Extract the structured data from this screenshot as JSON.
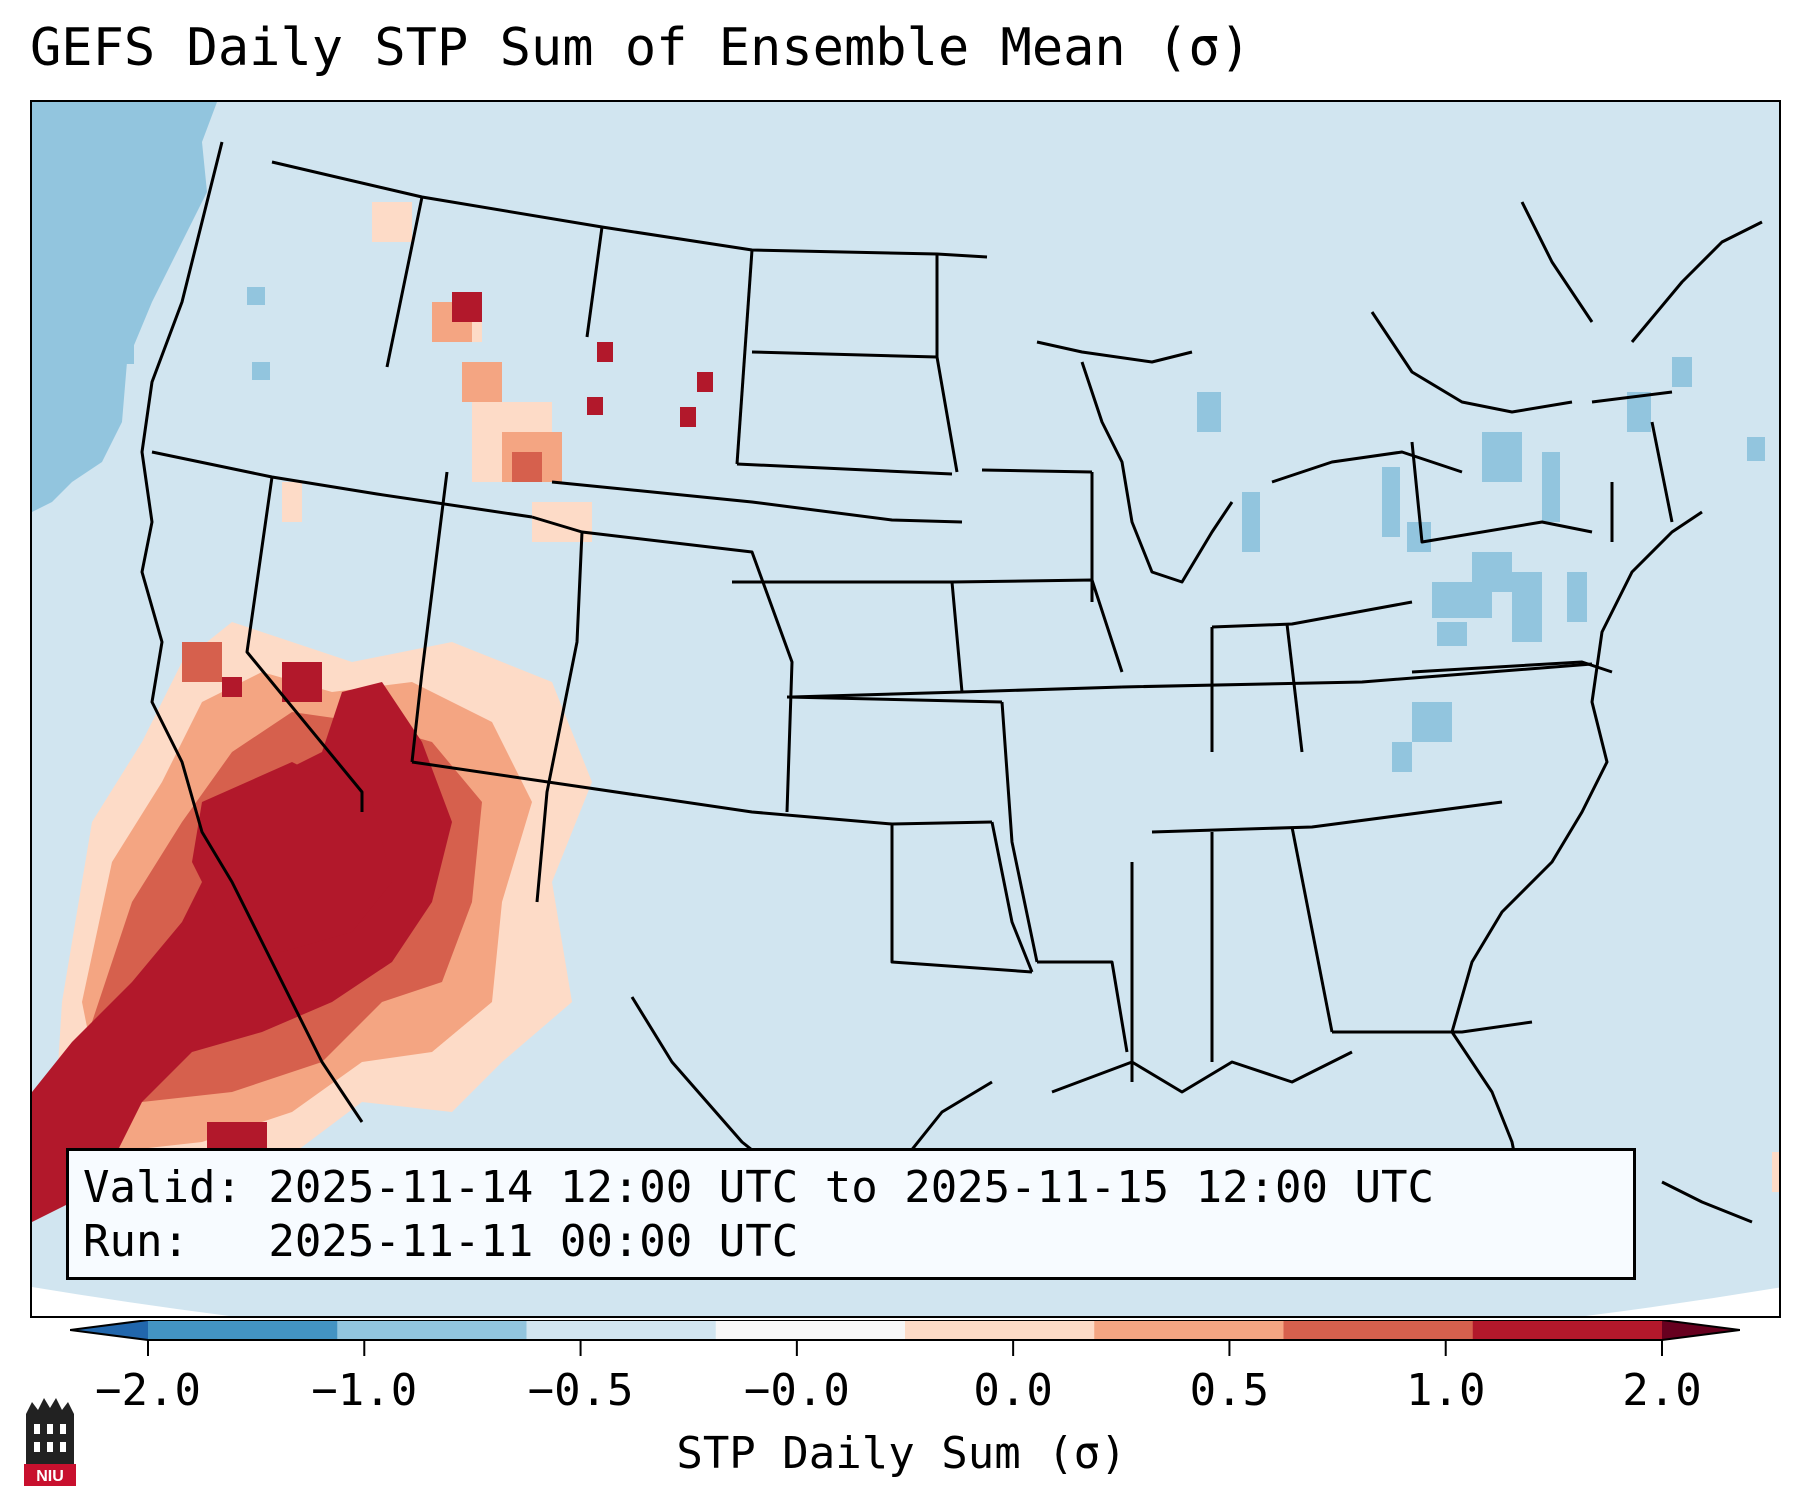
{
  "title": "GEFS Daily STP Sum of Ensemble Mean (σ)",
  "info_box": {
    "valid_line": "Valid: 2025-11-14 12:00 UTC to 2025-11-15 12:00 UTC",
    "run_line": "Run:   2025-11-11 00:00 UTC"
  },
  "colorbar": {
    "label": "STP Daily Sum (σ)",
    "ticks": [
      "−2.0",
      "−1.0",
      "−0.5",
      "−0.0",
      "0.0",
      "0.5",
      "1.0",
      "2.0"
    ],
    "colors": [
      "#4393c3",
      "#92c5de",
      "#d1e5f0",
      "#f7f7f7",
      "#fddbc7",
      "#f4a582",
      "#d6604d",
      "#b2182b"
    ],
    "under_color": "#2166ac",
    "over_color": "#67001f"
  },
  "map": {
    "background_color": "#d1e5f0",
    "outside_color": "#ffffff",
    "border_color": "#000000"
  },
  "logo": {
    "text": "NIU",
    "logo_colors": [
      "#222222",
      "#c8102e"
    ]
  }
}
